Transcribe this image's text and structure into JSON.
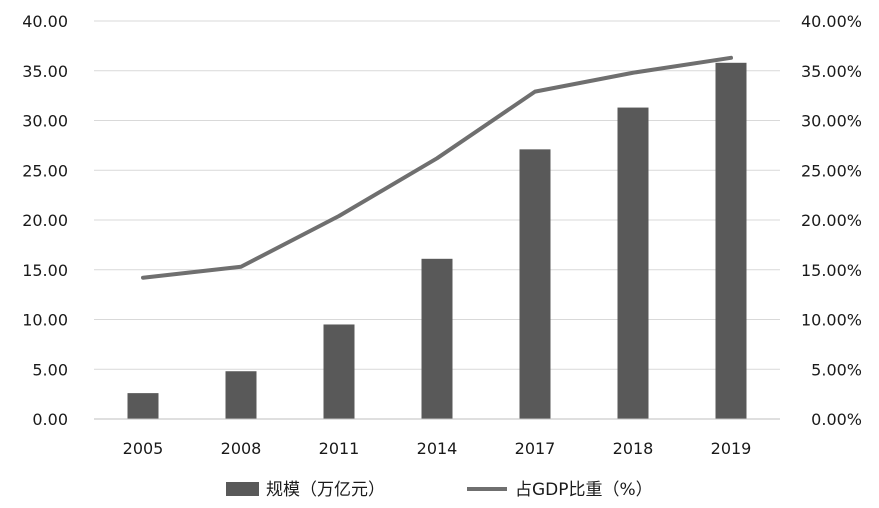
{
  "chart_data": {
    "type": "bar",
    "categories": [
      "2005",
      "2008",
      "2011",
      "2014",
      "2017",
      "2018",
      "2019"
    ],
    "series": [
      {
        "name": "规模（万亿元）",
        "kind": "bar",
        "axis": "left",
        "color": "#595959",
        "values": [
          2.6,
          4.8,
          9.5,
          16.1,
          27.1,
          31.3,
          35.8
        ]
      },
      {
        "name": "占GDP比重（%）",
        "kind": "line",
        "axis": "right",
        "color": "#6f6f6f",
        "values": [
          14.2,
          15.3,
          20.4,
          26.2,
          32.9,
          34.8,
          36.3
        ]
      }
    ],
    "y_left": {
      "ylim": [
        0,
        40
      ],
      "ticks": [
        "0.00",
        "5.00",
        "10.00",
        "15.00",
        "20.00",
        "25.00",
        "30.00",
        "35.00",
        "40.00"
      ]
    },
    "y_right": {
      "ylim": [
        0,
        40
      ],
      "unit": "%",
      "ticks": [
        "0.00%",
        "5.00%",
        "10.00%",
        "15.00%",
        "20.00%",
        "25.00%",
        "30.00%",
        "35.00%",
        "40.00%"
      ]
    },
    "grid": true,
    "legend_position": "bottom"
  }
}
